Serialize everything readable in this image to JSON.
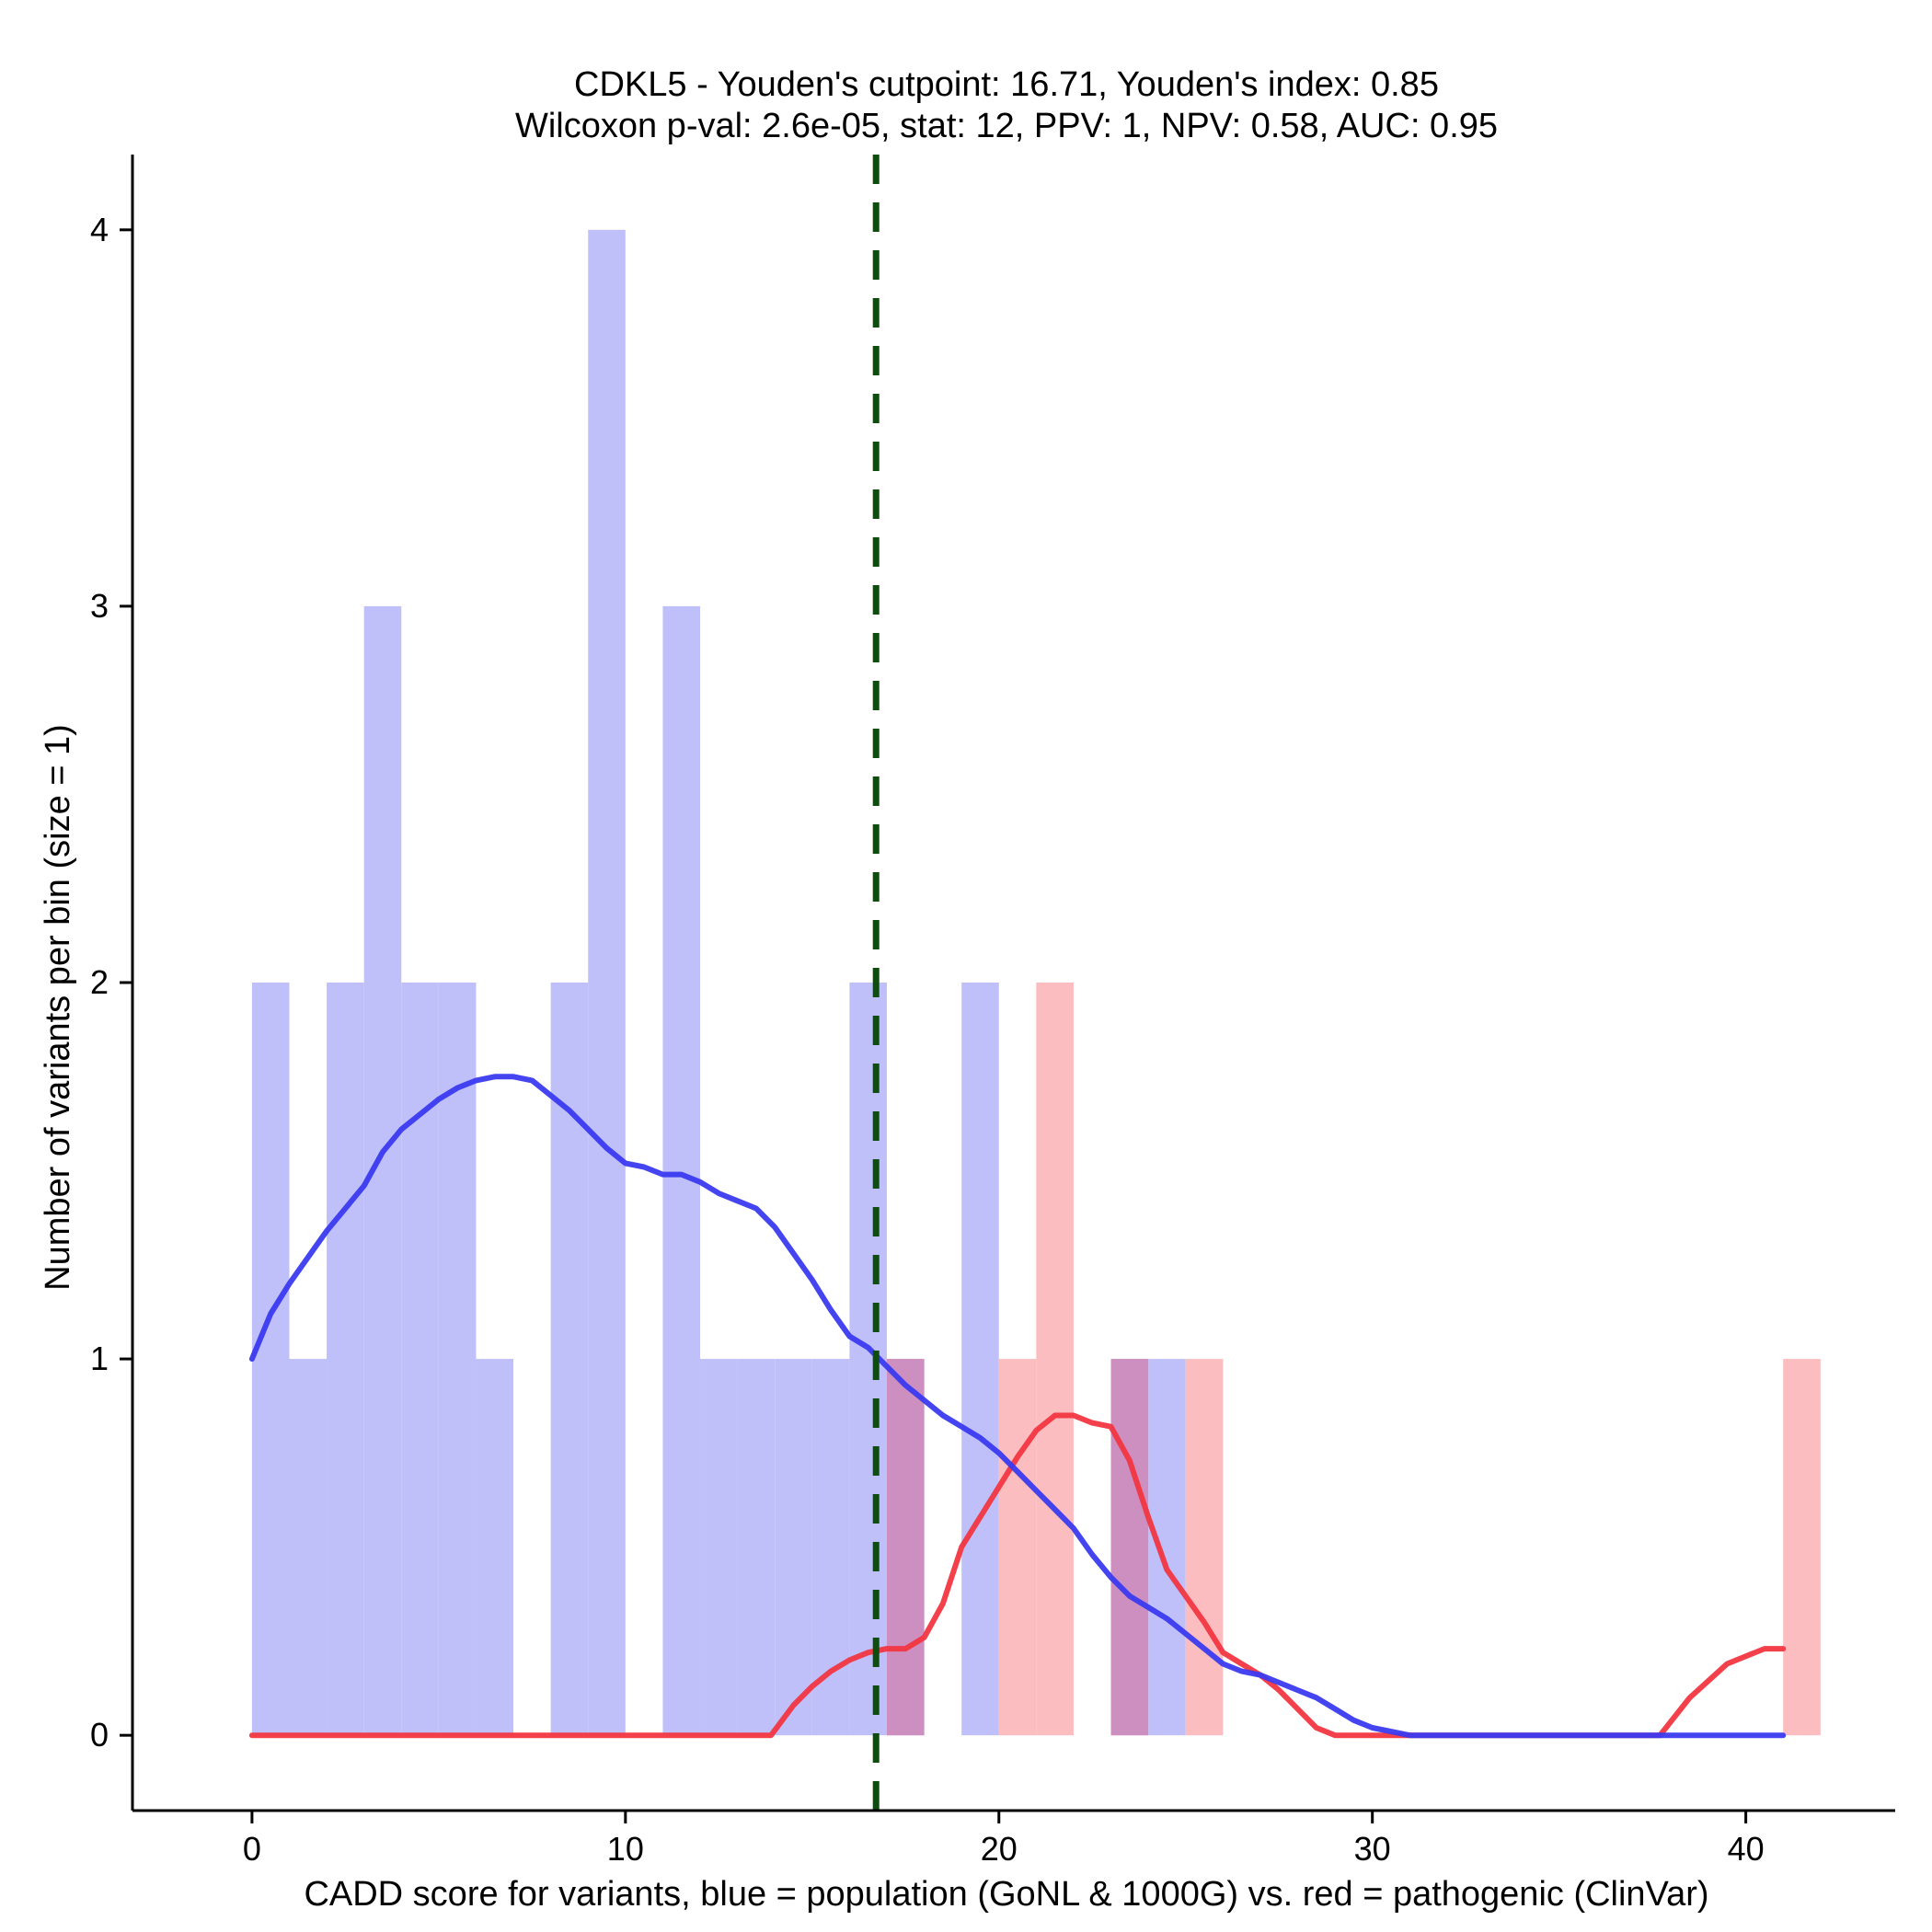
{
  "chart_data": {
    "type": "bar",
    "title_line1": "CDKL5 - Youden's cutpoint: 16.71, Youden's index: 0.85",
    "title_line2": "Wilcoxon p-val: 2.6e-05, stat: 12, PPV: 1, NPV: 0.58, AUC: 0.95",
    "xlabel": "CADD score for variants, blue = population (GoNL & 1000G) vs. red = pathogenic (ClinVar)",
    "ylabel": "Number of variants per bin (size = 1)",
    "xlim": [
      -3.2,
      44
    ],
    "ylim": [
      -0.2,
      4.2
    ],
    "x_ticks": [
      0,
      10,
      20,
      30,
      40
    ],
    "y_ticks": [
      0,
      1,
      2,
      3,
      4
    ],
    "cutpoint": 16.71,
    "bin_width": 1,
    "colors": {
      "population_bar": "#bfbffa",
      "pathogenic_bar": "#fbbdbf",
      "overlap_bar": "#cc8fc0",
      "population_line": "#3a3af0",
      "pathogenic_line": "#f23641",
      "cutpoint_line": "#0d4d0d"
    },
    "series": [
      {
        "name": "population (GoNL & 1000G)",
        "bins": [
          {
            "x": 0,
            "count": 2
          },
          {
            "x": 1,
            "count": 1
          },
          {
            "x": 2,
            "count": 2
          },
          {
            "x": 3,
            "count": 3
          },
          {
            "x": 4,
            "count": 2
          },
          {
            "x": 5,
            "count": 2
          },
          {
            "x": 6,
            "count": 1
          },
          {
            "x": 8,
            "count": 2
          },
          {
            "x": 9,
            "count": 4
          },
          {
            "x": 11,
            "count": 3
          },
          {
            "x": 12,
            "count": 1
          },
          {
            "x": 13,
            "count": 1
          },
          {
            "x": 14,
            "count": 1
          },
          {
            "x": 15,
            "count": 1
          },
          {
            "x": 16,
            "count": 2
          },
          {
            "x": 17,
            "count": 1
          },
          {
            "x": 19,
            "count": 2
          },
          {
            "x": 23,
            "count": 1
          },
          {
            "x": 24,
            "count": 1
          }
        ],
        "density": [
          [
            0,
            1.0
          ],
          [
            0.5,
            1.12
          ],
          [
            1,
            1.2
          ],
          [
            1.5,
            1.27
          ],
          [
            2,
            1.34
          ],
          [
            2.5,
            1.4
          ],
          [
            3,
            1.46
          ],
          [
            3.5,
            1.55
          ],
          [
            4,
            1.61
          ],
          [
            4.5,
            1.65
          ],
          [
            5,
            1.69
          ],
          [
            5.5,
            1.72
          ],
          [
            6,
            1.74
          ],
          [
            6.5,
            1.75
          ],
          [
            7,
            1.75
          ],
          [
            7.5,
            1.74
          ],
          [
            8,
            1.7
          ],
          [
            8.5,
            1.66
          ],
          [
            9,
            1.61
          ],
          [
            9.5,
            1.56
          ],
          [
            10,
            1.52
          ],
          [
            10.5,
            1.51
          ],
          [
            11,
            1.49
          ],
          [
            11.5,
            1.49
          ],
          [
            12,
            1.47
          ],
          [
            12.5,
            1.44
          ],
          [
            13,
            1.42
          ],
          [
            13.5,
            1.4
          ],
          [
            14,
            1.35
          ],
          [
            14.5,
            1.28
          ],
          [
            15,
            1.21
          ],
          [
            15.5,
            1.13
          ],
          [
            16,
            1.06
          ],
          [
            16.5,
            1.03
          ],
          [
            17,
            0.98
          ],
          [
            17.5,
            0.93
          ],
          [
            18,
            0.89
          ],
          [
            18.5,
            0.85
          ],
          [
            19,
            0.82
          ],
          [
            19.5,
            0.79
          ],
          [
            20,
            0.75
          ],
          [
            20.5,
            0.7
          ],
          [
            21,
            0.65
          ],
          [
            21.5,
            0.6
          ],
          [
            22,
            0.55
          ],
          [
            22.5,
            0.48
          ],
          [
            23,
            0.42
          ],
          [
            23.5,
            0.37
          ],
          [
            24,
            0.34
          ],
          [
            24.5,
            0.31
          ],
          [
            25,
            0.27
          ],
          [
            25.5,
            0.23
          ],
          [
            26,
            0.19
          ],
          [
            26.5,
            0.17
          ],
          [
            27,
            0.16
          ],
          [
            27.5,
            0.14
          ],
          [
            28,
            0.12
          ],
          [
            28.5,
            0.1
          ],
          [
            29,
            0.07
          ],
          [
            29.5,
            0.04
          ],
          [
            30,
            0.02
          ],
          [
            31,
            0.0
          ],
          [
            35,
            0.0
          ],
          [
            41,
            0.0
          ]
        ]
      },
      {
        "name": "pathogenic (ClinVar)",
        "bins": [
          {
            "x": 17,
            "count": 1
          },
          {
            "x": 20,
            "count": 1
          },
          {
            "x": 21,
            "count": 2
          },
          {
            "x": 23,
            "count": 1
          },
          {
            "x": 25,
            "count": 1
          },
          {
            "x": 41,
            "count": 1
          }
        ],
        "density": [
          [
            0,
            0.0
          ],
          [
            13.9,
            0.0
          ],
          [
            14.5,
            0.08
          ],
          [
            15,
            0.13
          ],
          [
            15.5,
            0.17
          ],
          [
            16,
            0.2
          ],
          [
            16.5,
            0.22
          ],
          [
            17,
            0.23
          ],
          [
            17.5,
            0.23
          ],
          [
            18,
            0.26
          ],
          [
            18.5,
            0.35
          ],
          [
            19,
            0.5
          ],
          [
            19.5,
            0.58
          ],
          [
            20,
            0.66
          ],
          [
            20.5,
            0.74
          ],
          [
            21,
            0.81
          ],
          [
            21.5,
            0.85
          ],
          [
            22,
            0.85
          ],
          [
            22.5,
            0.83
          ],
          [
            23,
            0.82
          ],
          [
            23.5,
            0.73
          ],
          [
            24,
            0.58
          ],
          [
            24.5,
            0.44
          ],
          [
            25,
            0.37
          ],
          [
            25.5,
            0.3
          ],
          [
            26,
            0.22
          ],
          [
            26.5,
            0.19
          ],
          [
            27,
            0.16
          ],
          [
            27.5,
            0.12
          ],
          [
            28,
            0.07
          ],
          [
            28.5,
            0.02
          ],
          [
            29,
            0.0
          ],
          [
            37.7,
            0.0
          ],
          [
            38.5,
            0.1
          ],
          [
            39.5,
            0.19
          ],
          [
            40.5,
            0.23
          ],
          [
            41,
            0.23
          ]
        ]
      }
    ]
  }
}
